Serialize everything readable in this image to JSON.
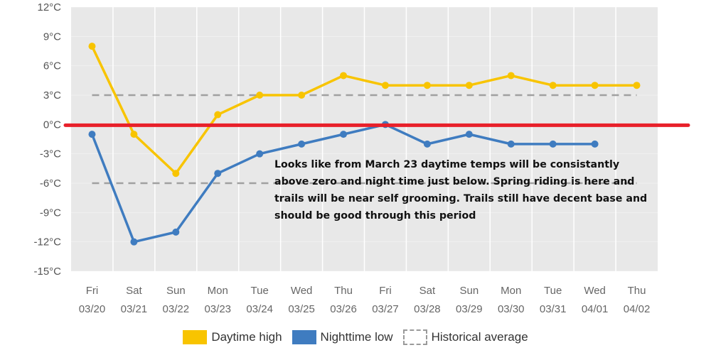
{
  "chart_data": {
    "type": "line",
    "categories": [
      {
        "day": "Fri",
        "date": "03/20"
      },
      {
        "day": "Sat",
        "date": "03/21"
      },
      {
        "day": "Sun",
        "date": "03/22"
      },
      {
        "day": "Mon",
        "date": "03/23"
      },
      {
        "day": "Tue",
        "date": "03/24"
      },
      {
        "day": "Wed",
        "date": "03/25"
      },
      {
        "day": "Thu",
        "date": "03/26"
      },
      {
        "day": "Fri",
        "date": "03/27"
      },
      {
        "day": "Sat",
        "date": "03/28"
      },
      {
        "day": "Sun",
        "date": "03/29"
      },
      {
        "day": "Mon",
        "date": "03/30"
      },
      {
        "day": "Tue",
        "date": "03/31"
      },
      {
        "day": "Wed",
        "date": "04/01"
      },
      {
        "day": "Thu",
        "date": "04/02"
      }
    ],
    "series": [
      {
        "name": "Daytime high",
        "color": "#f8c400",
        "values": [
          8,
          -1,
          -5,
          1,
          3,
          3,
          5,
          4,
          4,
          4,
          5,
          4,
          4,
          4
        ]
      },
      {
        "name": "Nighttime low",
        "color": "#3f7cc0",
        "values": [
          -1,
          -12,
          -11,
          -5,
          -3,
          -2,
          -1,
          0,
          -2,
          -1,
          -2,
          -2,
          -2,
          null
        ]
      }
    ],
    "historical_average": {
      "name": "Historical average",
      "high": 3,
      "low": -6
    },
    "reference_line": {
      "value": 0,
      "color": "#e8202a"
    },
    "ylim": [
      -15,
      12
    ],
    "yticks": [
      12,
      9,
      6,
      3,
      0,
      -3,
      -6,
      -9,
      -12,
      -15
    ],
    "tick_unit": "°C",
    "grid": true,
    "legend_position": "bottom-center",
    "annotation": "Looks like from March 23 daytime temps will be consistantly\nabove zero and night time just below. Spring riding is here and\ntrails will be near self grooming. Trails still have decent base and\nshould be good through this period"
  },
  "legend": {
    "items": [
      {
        "label": "Daytime high",
        "color": "#f8c400",
        "style": "solid"
      },
      {
        "label": "Nighttime low",
        "color": "#3f7cc0",
        "style": "solid"
      },
      {
        "label": "Historical average",
        "color": "#9a9a9a",
        "style": "dashed"
      }
    ]
  }
}
